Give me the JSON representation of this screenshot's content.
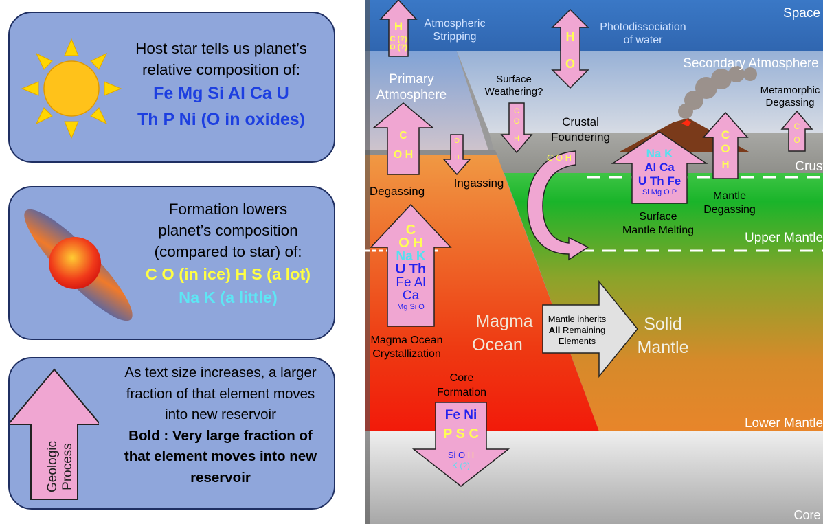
{
  "legend": {
    "panel1": {
      "lines": [
        "Host star tells us planet’s",
        "relative composition of:"
      ],
      "elements": [
        "Fe Mg Si Al Ca U",
        "Th P Ni (O in oxides)"
      ]
    },
    "panel2": {
      "lines": [
        "Formation lowers",
        "planet’s composition",
        "(compared to star) of:"
      ],
      "yellow_line": "C O (in ice) H S (a lot)",
      "cyan_line": "Na K (a little)"
    },
    "panel3": {
      "arrow_label_1": "Geologic",
      "arrow_label_2": "Process",
      "lines": [
        "As text size increases, a larger",
        "fraction of that element moves",
        "into new reservoir"
      ],
      "bold_lines": [
        "Bold : Very large fraction of",
        "that element moves into new",
        "reservoir"
      ]
    }
  },
  "diagram": {
    "colors": {
      "space": "#3f78c4",
      "pink": "#f0a6d2",
      "yellow": "#ffff55",
      "blue": "#2222ee",
      "cyan": "#55e0f0"
    },
    "layers": {
      "space": "Space",
      "secondary_atmosphere": "Secondary Atmosphere",
      "primary_atmosphere_1": "Primary",
      "primary_atmosphere_2": "Atmosphere",
      "crust": "Crust",
      "upper_mantle": "Upper Mantle",
      "lower_mantle": "Lower Mantle",
      "core": "Core",
      "magma_ocean_1": "Magma",
      "magma_ocean_2": "Ocean",
      "solid_mantle_1": "Solid",
      "solid_mantle_2": "Mantle"
    },
    "processes": {
      "atm_stripping_1": "Atmospheric",
      "atm_stripping_2": "Stripping",
      "photodissociation_1": "Photodissociation",
      "photodissociation_2": "of water",
      "surface_weathering_1": "Surface",
      "surface_weathering_2": "Weathering?",
      "crustal_foundering_1": "Crustal",
      "crustal_foundering_2": "Foundering",
      "metamorphic_1": "Metamorphic",
      "metamorphic_2": "Degassing",
      "degassing": "Degassing",
      "ingassing": "Ingassing",
      "mantle_degassing_1": "Mantle",
      "mantle_degassing_2": "Degassing",
      "surface_melting_1": "Surface",
      "surface_melting_2": "Mantle Melting",
      "mo_crystallization_1": "Magma Ocean",
      "mo_crystallization_2": "Crystallization",
      "core_formation_1": "Core",
      "core_formation_2": "Formation",
      "inherit_1": "Mantle inherits",
      "inherit_2_bold": "All",
      "inherit_2_rest": " Remaining",
      "inherit_3": "Elements"
    },
    "arrow_text": {
      "stripping": {
        "h": "H",
        "c": "C (?)",
        "o": "O (?)"
      },
      "photo": {
        "h": "H",
        "o": "O"
      },
      "weathering": {
        "c": "C",
        "o": "O",
        "h": "H"
      },
      "degas": {
        "c": "C",
        "oh": "O H"
      },
      "ingas": {
        "o": "O",
        "h": "H"
      },
      "foundering": "C O H",
      "melting": {
        "nak": "Na K",
        "alca": "Al Ca",
        "uthfe": "U Th Fe",
        "small": "Si Mg O P"
      },
      "mantle_degas": {
        "c": "C",
        "o": "O",
        "h": "H"
      },
      "meta": {
        "c": "C",
        "o": "O"
      },
      "cryst": {
        "c": "C",
        "oh": "O H",
        "nak": "Na K",
        "uth": "U Th",
        "feal": "Fe Al",
        "ca": "Ca",
        "small": "Mg Si O"
      },
      "core": {
        "feni": "Fe Ni",
        "p": "P",
        "s": "S",
        "c": "C",
        "sio": "Si O",
        "h": "H",
        "k": "K (?)"
      }
    }
  }
}
